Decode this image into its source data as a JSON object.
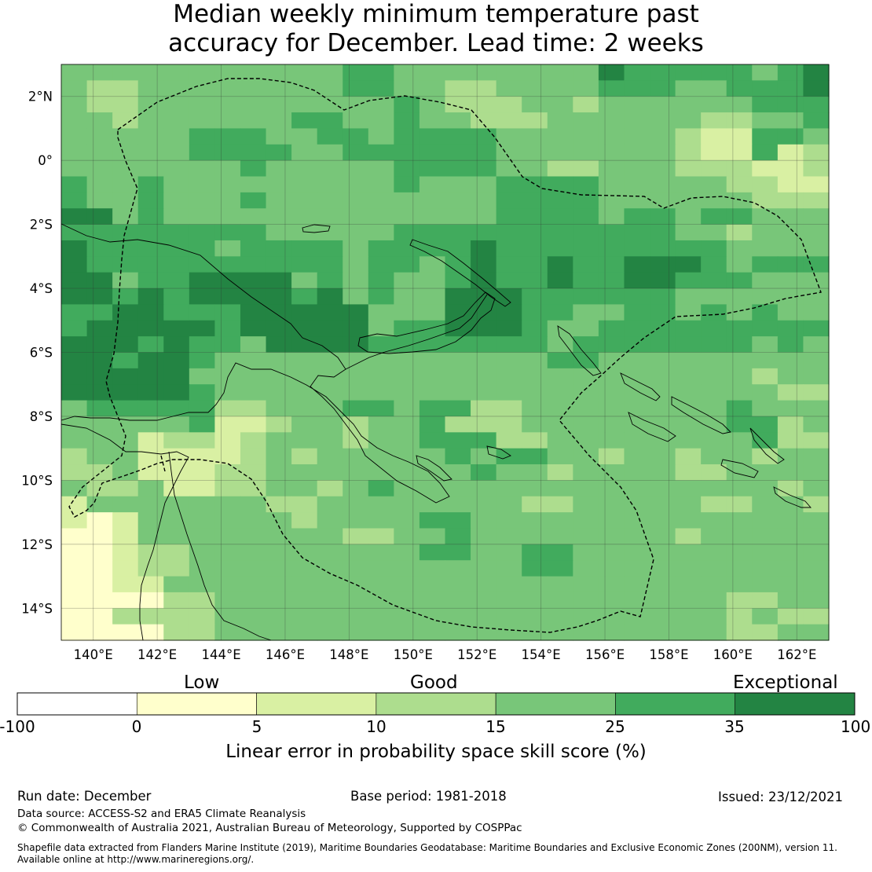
{
  "title": {
    "line1": "Median weekly minimum temperature past",
    "line2": "accuracy for December. Lead time: 2 weeks"
  },
  "map": {
    "lat_labels": [
      "2°N",
      "0°",
      "2°S",
      "4°S",
      "6°S",
      "8°S",
      "10°S",
      "12°S",
      "14°S"
    ],
    "lon_labels": [
      "140°E",
      "142°E",
      "144°E",
      "146°E",
      "148°E",
      "150°E",
      "152°E",
      "154°E",
      "156°E",
      "158°E",
      "160°E",
      "162°E"
    ],
    "lat_range": [
      -15,
      3
    ],
    "lon_range": [
      139,
      163
    ]
  },
  "colorbar": {
    "category_labels": [
      "Low",
      "Good",
      "Exceptional"
    ],
    "tick_values": [
      "-100",
      "0",
      "5",
      "10",
      "15",
      "25",
      "35",
      "100"
    ],
    "title": "Linear error in probability space skill score (%)",
    "bins": [
      {
        "range": "-100 to 0",
        "color": "#ffffff"
      },
      {
        "range": "0 to 5",
        "color": "#ffffcc"
      },
      {
        "range": "5 to 10",
        "color": "#d9f0a3"
      },
      {
        "range": "10 to 15",
        "color": "#addd8e"
      },
      {
        "range": "15 to 25",
        "color": "#78c679"
      },
      {
        "range": "25 to 35",
        "color": "#41ab5d"
      },
      {
        "range": "35 to 100",
        "color": "#238443"
      }
    ]
  },
  "footer": {
    "run_date": "Run date: December",
    "base_period": "Base period: 1981-2018",
    "issued": "Issued: 23/12/2021",
    "data_source": "Data source: ACCESS-S2 and ERA5 Climate Reanalysis",
    "copyright": "© Commonwealth of Australia 2021, Australian Bureau of Meteorology, Supported by COSPPac",
    "shapefile_line1": "Shapefile data extracted from Flanders Marine Institute (2019), Maritime Boundaries Geodatabase: Maritime Boundaries and Exclusive Economic Zones (200NM), version 11.",
    "shapefile_line2": "Available online at http://www.marineregions.org/."
  },
  "grid_values": [
    [
      15,
      15,
      15,
      15,
      15,
      15,
      15,
      15,
      15,
      15,
      15,
      25,
      25,
      15,
      15,
      15,
      15,
      15,
      15,
      15,
      15,
      35,
      25,
      25,
      25,
      25,
      25,
      15,
      25,
      35
    ],
    [
      15,
      10,
      10,
      15,
      15,
      15,
      15,
      15,
      15,
      15,
      15,
      25,
      25,
      15,
      15,
      10,
      10,
      15,
      15,
      15,
      15,
      25,
      25,
      25,
      15,
      15,
      25,
      25,
      25,
      35
    ],
    [
      15,
      10,
      10,
      15,
      15,
      15,
      15,
      15,
      15,
      15,
      15,
      15,
      15,
      25,
      15,
      10,
      10,
      10,
      15,
      15,
      10,
      15,
      15,
      15,
      15,
      15,
      15,
      25,
      25,
      25
    ],
    [
      15,
      15,
      10,
      15,
      15,
      15,
      15,
      15,
      15,
      25,
      25,
      15,
      15,
      25,
      15,
      15,
      10,
      10,
      10,
      15,
      15,
      15,
      15,
      15,
      15,
      10,
      10,
      15,
      15,
      25
    ],
    [
      15,
      15,
      15,
      15,
      15,
      25,
      25,
      25,
      15,
      15,
      25,
      25,
      15,
      25,
      25,
      25,
      25,
      15,
      15,
      15,
      15,
      15,
      15,
      15,
      10,
      5,
      5,
      25,
      25,
      15
    ],
    [
      15,
      15,
      15,
      15,
      15,
      25,
      25,
      25,
      25,
      15,
      15,
      25,
      25,
      25,
      25,
      25,
      25,
      15,
      15,
      15,
      15,
      15,
      15,
      15,
      10,
      5,
      5,
      25,
      5,
      10
    ],
    [
      15,
      15,
      15,
      15,
      15,
      15,
      15,
      25,
      15,
      15,
      15,
      15,
      15,
      25,
      25,
      25,
      25,
      15,
      15,
      10,
      10,
      15,
      15,
      15,
      10,
      10,
      10,
      5,
      5,
      10
    ],
    [
      25,
      15,
      15,
      25,
      15,
      15,
      15,
      15,
      15,
      15,
      15,
      15,
      15,
      25,
      15,
      15,
      15,
      25,
      25,
      25,
      25,
      15,
      15,
      15,
      15,
      15,
      10,
      10,
      5,
      5
    ],
    [
      25,
      15,
      15,
      25,
      15,
      15,
      15,
      25,
      15,
      15,
      15,
      15,
      15,
      15,
      15,
      15,
      15,
      25,
      25,
      25,
      25,
      15,
      15,
      15,
      15,
      15,
      15,
      10,
      10,
      10
    ],
    [
      35,
      35,
      15,
      25,
      15,
      15,
      15,
      15,
      15,
      15,
      15,
      15,
      15,
      15,
      15,
      15,
      15,
      25,
      25,
      25,
      25,
      15,
      25,
      25,
      15,
      25,
      25,
      15,
      15,
      15
    ],
    [
      25,
      25,
      25,
      25,
      25,
      25,
      25,
      25,
      15,
      15,
      15,
      15,
      15,
      25,
      25,
      25,
      25,
      25,
      25,
      25,
      25,
      25,
      25,
      25,
      15,
      15,
      10,
      15,
      15,
      15
    ],
    [
      35,
      25,
      25,
      25,
      25,
      25,
      15,
      25,
      25,
      25,
      25,
      15,
      25,
      25,
      25,
      25,
      35,
      25,
      25,
      25,
      25,
      25,
      25,
      25,
      25,
      25,
      15,
      15,
      15,
      15
    ],
    [
      35,
      25,
      25,
      25,
      25,
      25,
      25,
      25,
      25,
      25,
      25,
      15,
      25,
      25,
      15,
      25,
      35,
      25,
      25,
      35,
      25,
      25,
      35,
      35,
      35,
      25,
      15,
      25,
      25,
      25
    ],
    [
      35,
      35,
      15,
      25,
      25,
      35,
      35,
      35,
      35,
      15,
      25,
      15,
      25,
      15,
      15,
      25,
      35,
      25,
      25,
      35,
      25,
      25,
      35,
      35,
      25,
      25,
      25,
      15,
      15,
      15
    ],
    [
      35,
      35,
      25,
      35,
      25,
      35,
      35,
      35,
      35,
      25,
      35,
      15,
      25,
      15,
      15,
      35,
      35,
      35,
      25,
      25,
      25,
      25,
      25,
      25,
      15,
      15,
      15,
      15,
      15,
      15
    ],
    [
      25,
      25,
      35,
      35,
      25,
      25,
      25,
      35,
      35,
      35,
      35,
      35,
      15,
      15,
      15,
      35,
      35,
      35,
      25,
      25,
      15,
      15,
      25,
      25,
      15,
      25,
      15,
      25,
      15,
      15
    ],
    [
      25,
      35,
      35,
      35,
      35,
      35,
      25,
      35,
      35,
      35,
      35,
      35,
      15,
      25,
      25,
      35,
      35,
      35,
      25,
      15,
      15,
      25,
      25,
      25,
      25,
      25,
      25,
      25,
      25,
      25
    ],
    [
      35,
      35,
      35,
      25,
      35,
      25,
      25,
      15,
      35,
      35,
      35,
      35,
      25,
      25,
      25,
      25,
      25,
      25,
      25,
      15,
      25,
      25,
      25,
      25,
      25,
      25,
      25,
      15,
      25,
      15
    ],
    [
      35,
      35,
      25,
      35,
      35,
      25,
      15,
      15,
      15,
      15,
      15,
      15,
      15,
      15,
      15,
      15,
      15,
      15,
      15,
      25,
      25,
      15,
      15,
      15,
      15,
      15,
      15,
      15,
      15,
      15
    ],
    [
      35,
      35,
      35,
      35,
      35,
      15,
      15,
      15,
      15,
      15,
      15,
      15,
      15,
      15,
      15,
      15,
      15,
      15,
      15,
      15,
      15,
      15,
      15,
      15,
      15,
      15,
      15,
      10,
      15,
      15
    ],
    [
      35,
      35,
      35,
      35,
      35,
      25,
      15,
      15,
      15,
      15,
      15,
      15,
      15,
      15,
      15,
      15,
      15,
      15,
      15,
      15,
      15,
      15,
      15,
      15,
      15,
      15,
      15,
      15,
      10,
      10
    ],
    [
      15,
      25,
      25,
      25,
      25,
      25,
      10,
      10,
      15,
      15,
      15,
      25,
      25,
      15,
      25,
      25,
      10,
      10,
      15,
      15,
      15,
      15,
      15,
      15,
      15,
      15,
      25,
      15,
      15,
      15
    ],
    [
      15,
      15,
      15,
      15,
      15,
      25,
      5,
      5,
      10,
      15,
      15,
      10,
      15,
      15,
      25,
      10,
      10,
      10,
      15,
      15,
      15,
      15,
      15,
      15,
      15,
      15,
      25,
      25,
      10,
      15
    ],
    [
      15,
      15,
      15,
      5,
      10,
      10,
      5,
      10,
      15,
      15,
      15,
      10,
      15,
      15,
      25,
      25,
      25,
      10,
      10,
      15,
      15,
      15,
      15,
      15,
      15,
      15,
      15,
      25,
      10,
      10
    ],
    [
      10,
      15,
      15,
      5,
      5,
      5,
      5,
      10,
      15,
      10,
      15,
      15,
      15,
      15,
      15,
      25,
      15,
      25,
      25,
      15,
      15,
      10,
      15,
      15,
      10,
      15,
      15,
      10,
      15,
      15
    ],
    [
      10,
      10,
      15,
      5,
      5,
      5,
      10,
      10,
      15,
      15,
      15,
      15,
      15,
      15,
      15,
      15,
      25,
      15,
      15,
      10,
      15,
      15,
      15,
      15,
      10,
      10,
      15,
      15,
      15,
      15
    ],
    [
      15,
      10,
      10,
      15,
      5,
      5,
      10,
      10,
      15,
      15,
      10,
      15,
      25,
      15,
      15,
      15,
      15,
      15,
      15,
      15,
      15,
      15,
      15,
      15,
      15,
      15,
      15,
      15,
      10,
      15
    ],
    [
      5,
      15,
      15,
      15,
      15,
      15,
      15,
      15,
      10,
      10,
      15,
      15,
      15,
      15,
      15,
      15,
      15,
      15,
      10,
      10,
      15,
      15,
      15,
      15,
      15,
      10,
      10,
      15,
      15,
      10
    ],
    [
      5,
      0,
      5,
      15,
      15,
      15,
      15,
      15,
      15,
      10,
      15,
      15,
      15,
      15,
      25,
      25,
      15,
      15,
      15,
      15,
      15,
      15,
      15,
      15,
      15,
      15,
      15,
      15,
      15,
      15
    ],
    [
      0,
      0,
      5,
      15,
      15,
      15,
      15,
      15,
      15,
      15,
      15,
      10,
      10,
      15,
      15,
      25,
      15,
      15,
      15,
      15,
      15,
      15,
      15,
      15,
      10,
      15,
      15,
      15,
      15,
      15
    ],
    [
      0,
      0,
      5,
      10,
      10,
      15,
      15,
      15,
      15,
      15,
      15,
      15,
      15,
      15,
      25,
      25,
      15,
      15,
      25,
      25,
      15,
      15,
      15,
      15,
      15,
      15,
      15,
      15,
      15,
      15
    ],
    [
      0,
      0,
      5,
      10,
      10,
      15,
      15,
      15,
      15,
      15,
      15,
      15,
      15,
      15,
      15,
      15,
      15,
      15,
      25,
      25,
      15,
      15,
      15,
      15,
      15,
      15,
      15,
      15,
      15,
      15
    ],
    [
      0,
      0,
      5,
      5,
      15,
      15,
      15,
      15,
      15,
      15,
      15,
      15,
      15,
      15,
      15,
      15,
      15,
      15,
      15,
      15,
      15,
      15,
      15,
      15,
      15,
      15,
      15,
      15,
      15,
      15
    ],
    [
      0,
      0,
      0,
      0,
      10,
      10,
      15,
      15,
      15,
      15,
      15,
      15,
      15,
      15,
      15,
      15,
      15,
      15,
      15,
      15,
      15,
      15,
      15,
      15,
      15,
      15,
      10,
      10,
      15,
      15
    ],
    [
      0,
      0,
      10,
      10,
      10,
      10,
      15,
      15,
      15,
      15,
      15,
      15,
      15,
      15,
      15,
      15,
      15,
      15,
      15,
      15,
      15,
      15,
      15,
      15,
      15,
      15,
      10,
      15,
      10,
      10
    ],
    [
      0,
      0,
      0,
      0,
      10,
      10,
      15,
      15,
      15,
      15,
      15,
      15,
      15,
      15,
      15,
      15,
      15,
      15,
      15,
      15,
      15,
      15,
      15,
      15,
      15,
      15,
      10,
      10,
      15,
      15
    ]
  ]
}
